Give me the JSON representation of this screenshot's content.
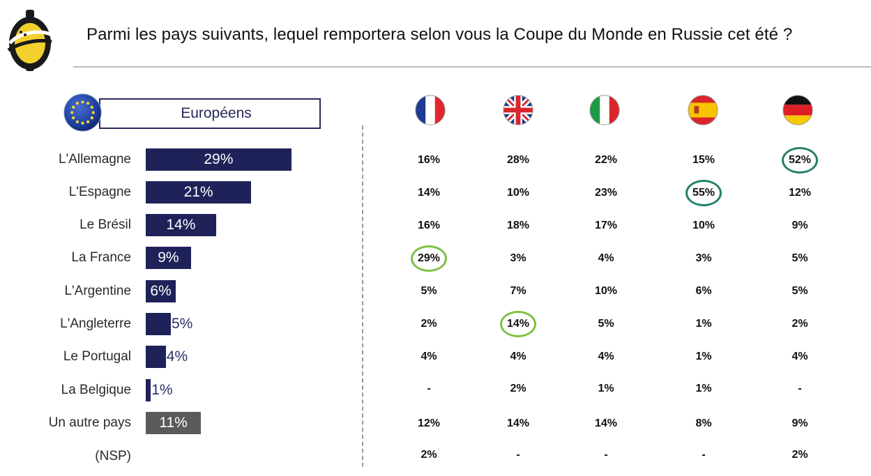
{
  "title": "Parmi les pays suivants, lequel remportera selon vous la Coupe du Monde en Russie cet été ?",
  "legend": {
    "label": "Européens",
    "icon": "eu-flag-icon"
  },
  "colors": {
    "bar_main": "#1f2259",
    "bar_other": "#5a5a5a",
    "ring_green": "#7dc242",
    "ring_teal": "#23806b",
    "frame": "#27295a"
  },
  "country_columns": [
    {
      "icon": "france-flag-icon"
    },
    {
      "icon": "uk-flag-icon"
    },
    {
      "icon": "italy-flag-icon"
    },
    {
      "icon": "spain-flag-icon"
    },
    {
      "icon": "germany-flag-icon"
    }
  ],
  "chart_data": {
    "type": "bar",
    "categories": [
      "L'Allemagne",
      "L'Espagne",
      "Le Brésil",
      "La France",
      "L'Argentine",
      "L'Angleterre",
      "Le Portugal",
      "La Belgique",
      "Un autre pays",
      "(NSP)"
    ],
    "series": [
      {
        "name": "Européens",
        "values": [
          29,
          21,
          14,
          9,
          6,
          5,
          4,
          1,
          11,
          null
        ]
      }
    ],
    "value_labels": [
      "29%",
      "21%",
      "14%",
      "9%",
      "6%",
      "5%",
      "4%",
      "1%",
      "11%",
      ""
    ],
    "table": {
      "rows": [
        [
          "16%",
          "28%",
          "22%",
          "15%",
          "52%"
        ],
        [
          "14%",
          "10%",
          "23%",
          "55%",
          "12%"
        ],
        [
          "16%",
          "18%",
          "17%",
          "10%",
          "9%"
        ],
        [
          "29%",
          "3%",
          "4%",
          "3%",
          "5%"
        ],
        [
          "5%",
          "7%",
          "10%",
          "6%",
          "5%"
        ],
        [
          "2%",
          "14%",
          "5%",
          "1%",
          "2%"
        ],
        [
          "4%",
          "4%",
          "4%",
          "1%",
          "4%"
        ],
        [
          "-",
          "2%",
          "1%",
          "1%",
          "-"
        ],
        [
          "12%",
          "14%",
          "14%",
          "8%",
          "9%"
        ],
        [
          "2%",
          "-",
          "-",
          "-",
          "2%"
        ]
      ],
      "highlights": [
        {
          "row": 0,
          "col": 4,
          "color": "teal"
        },
        {
          "row": 1,
          "col": 3,
          "color": "teal"
        },
        {
          "row": 3,
          "col": 0,
          "color": "green"
        },
        {
          "row": 5,
          "col": 1,
          "color": "green"
        }
      ]
    }
  }
}
